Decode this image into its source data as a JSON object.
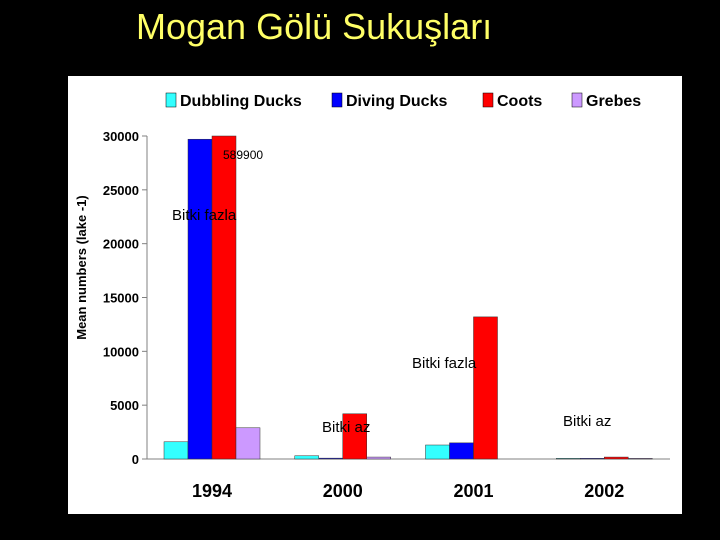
{
  "slide": {
    "title": "Mogan Gölü Sukuşları"
  },
  "chart_data": {
    "type": "bar",
    "ylabel": "Mean numbers (lake -1)",
    "categories": [
      "1994",
      "2000",
      "2001",
      "2002"
    ],
    "ylim": [
      0,
      30000
    ],
    "yticks": [
      0,
      5000,
      10000,
      15000,
      20000,
      25000,
      30000
    ],
    "grid": false,
    "legend": "top",
    "series": [
      {
        "name": "Dubbling Ducks",
        "color": "#33ffff",
        "values": [
          1600,
          300,
          1300,
          60
        ]
      },
      {
        "name": "Diving Ducks",
        "color": "#0000ff",
        "values": [
          29700,
          80,
          1500,
          60
        ]
      },
      {
        "name": "Coots",
        "color": "#ff0000",
        "values": [
          30000,
          4200,
          13200,
          180
        ]
      },
      {
        "name": "Grebes",
        "color": "#cc99ff",
        "values": [
          2900,
          180,
          0,
          60
        ]
      }
    ],
    "annotations": [
      {
        "text": "589900"
      },
      {
        "text": "Bitki fazla"
      },
      {
        "text": "Bitki fazla"
      },
      {
        "text": "Bitki az"
      },
      {
        "text": "Bitki az"
      }
    ]
  }
}
